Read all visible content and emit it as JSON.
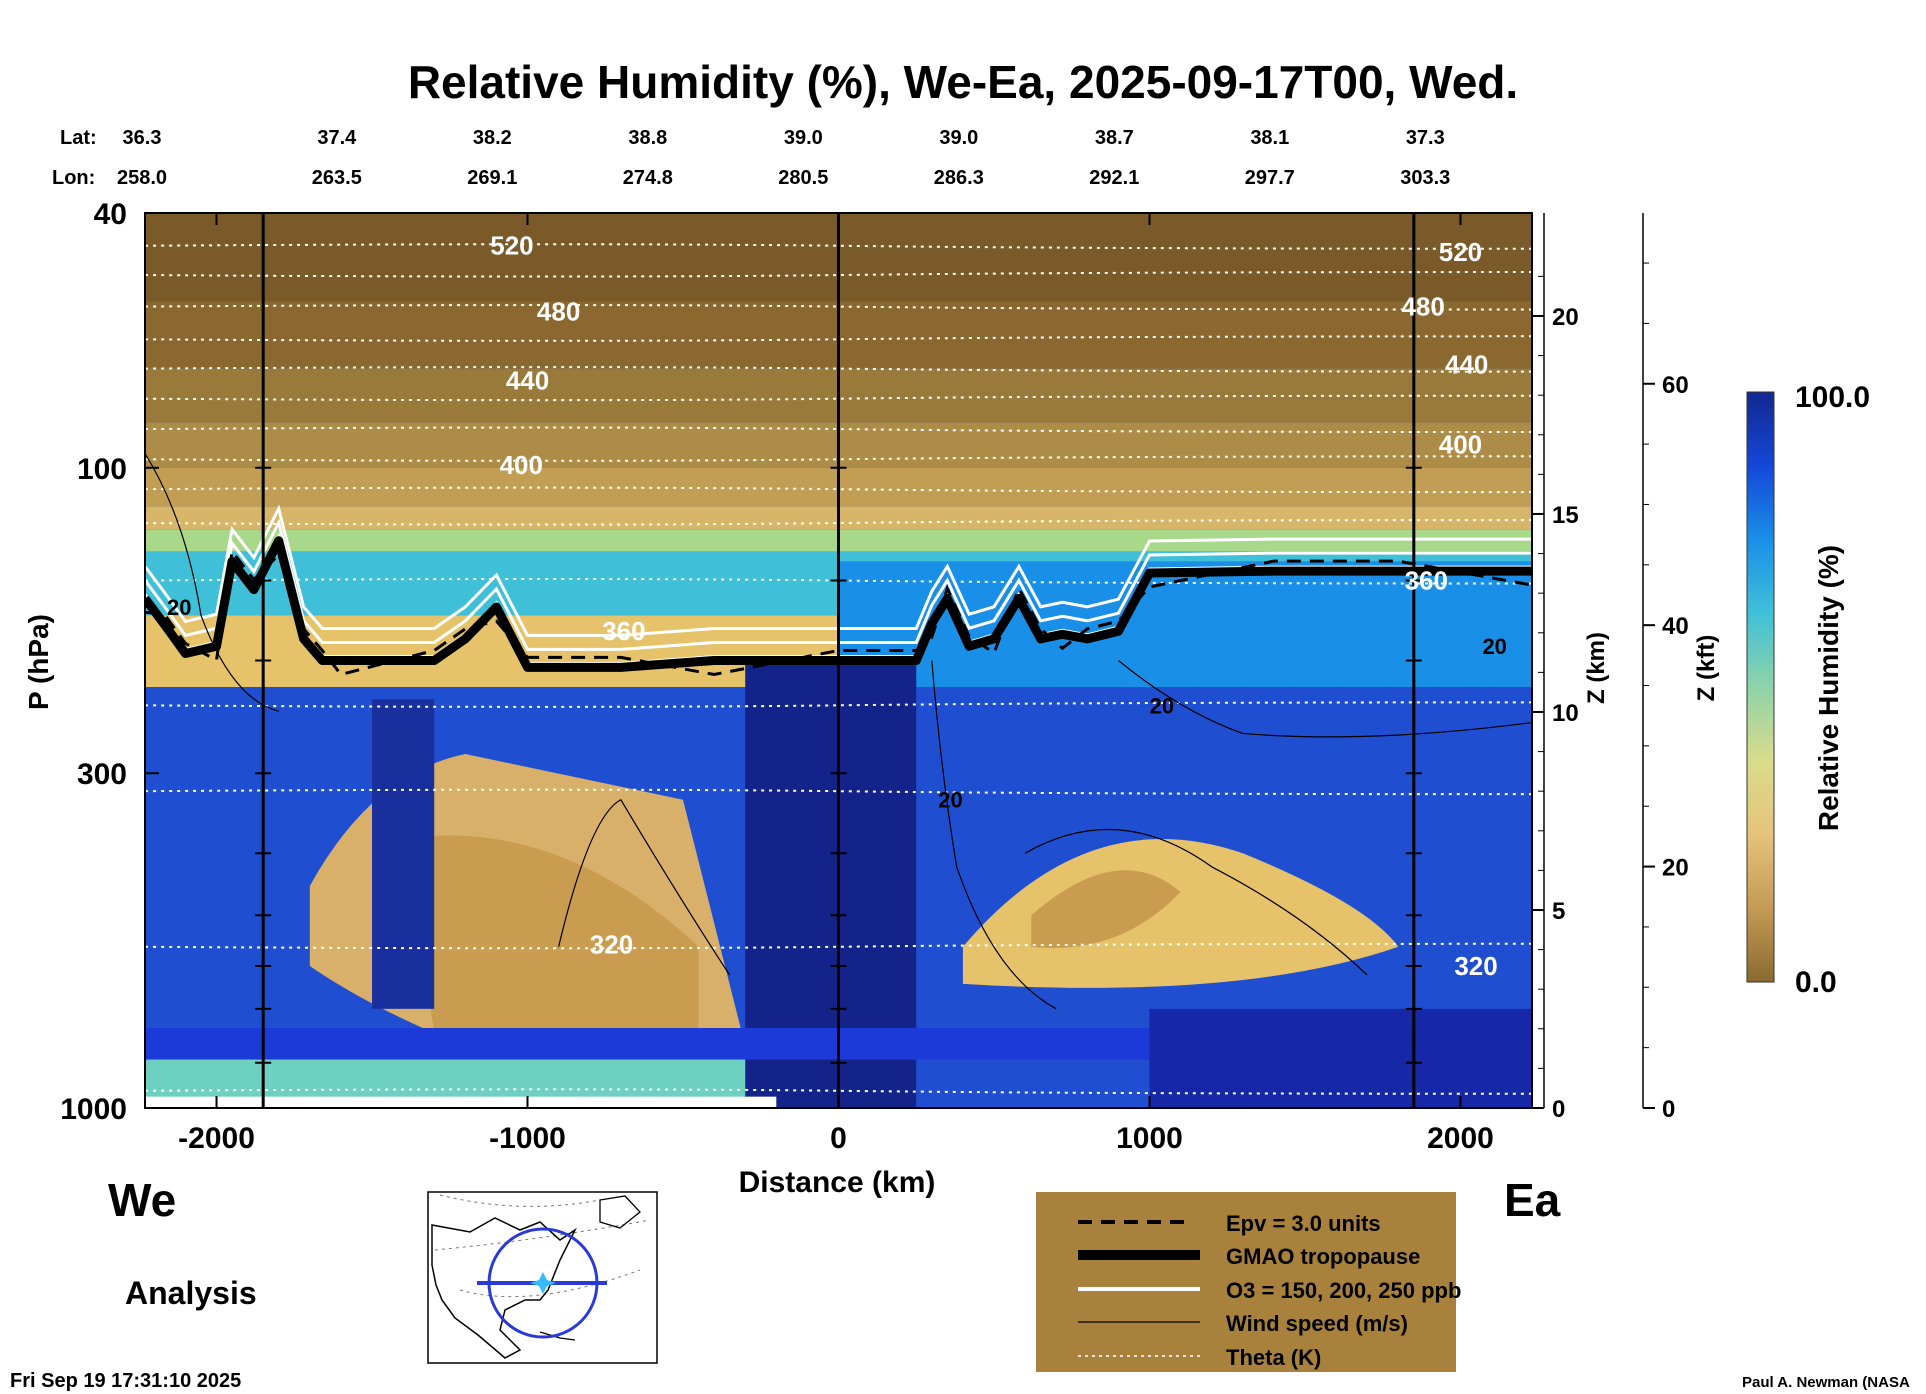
{
  "chart_data": {
    "type": "heatmap",
    "title": "Relative Humidity (%), We-Ea, 2025-09-17T00, Wed.",
    "xlabel": "Distance (km)",
    "ylabel": "P (hPa)",
    "y2label": "Z (km)",
    "y3label": "Z (kft)",
    "xlim": [
      -2230,
      2230
    ],
    "ylim": [
      1000,
      40
    ],
    "y_scale": "log",
    "x_ticks": [
      "-2000",
      "-1000",
      "0",
      "1000",
      "2000"
    ],
    "x_tick_values": [
      -2000,
      -1000,
      0,
      1000,
      2000
    ],
    "y_ticks": [
      "40",
      "100",
      "300",
      "1000"
    ],
    "y_tick_values": [
      40,
      100,
      300,
      1000
    ],
    "z_km_ticks": [
      "0",
      "5",
      "10",
      "15",
      "20"
    ],
    "z_km_values": [
      0,
      5,
      10,
      15,
      20
    ],
    "z_kft_ticks": [
      "0",
      "20",
      "40",
      "60"
    ],
    "z_kft_values": [
      0,
      20,
      40,
      60
    ],
    "left_label": "We",
    "right_label": "Ea",
    "lat_label": "Lat:",
    "lon_label": "Lon:",
    "lat": [
      "36.3",
      "37.4",
      "38.2",
      "38.8",
      "39.0",
      "39.0",
      "38.7",
      "38.1",
      "37.3"
    ],
    "lon": [
      "258.0",
      "263.5",
      "269.1",
      "274.8",
      "280.5",
      "286.3",
      "292.1",
      "297.7",
      "303.3"
    ],
    "station_distance": [
      -2230,
      -1790,
      -1290,
      -790,
      -290,
      210,
      710,
      1210,
      1710
    ],
    "vertical_lines": [
      -1850,
      0,
      1850
    ],
    "colorbar": {
      "label": "Relative Humidity (%)",
      "min": "0.0",
      "max": "100.0",
      "colors": [
        "#8a6a30",
        "#c49a55",
        "#e6c37a",
        "#d9dc8a",
        "#8fd3a8",
        "#3fc0d8",
        "#1a8fe8",
        "#1447d8",
        "#13288f"
      ]
    },
    "theta_contours": [
      {
        "label": "520",
        "x": -1050,
        "p": 45
      },
      {
        "label": "480",
        "x": -900,
        "p": 57
      },
      {
        "label": "440",
        "x": -1000,
        "p": 73
      },
      {
        "label": "400",
        "x": -1020,
        "p": 99
      },
      {
        "label": "360",
        "x": -690,
        "p": 180
      },
      {
        "label": "320",
        "x": -730,
        "p": 555
      },
      {
        "label": "520",
        "x": 2000,
        "p": 46
      },
      {
        "label": "480",
        "x": 1880,
        "p": 56
      },
      {
        "label": "440",
        "x": 2020,
        "p": 69
      },
      {
        "label": "400",
        "x": 2000,
        "p": 92
      },
      {
        "label": "360",
        "x": 1890,
        "p": 150
      },
      {
        "label": "320",
        "x": 2050,
        "p": 600
      }
    ],
    "wind_labels": [
      {
        "label": "20",
        "x": -2120,
        "p": 165
      },
      {
        "label": "20",
        "x": 1040,
        "p": 235
      },
      {
        "label": "20",
        "x": 360,
        "p": 330
      },
      {
        "label": "20",
        "x": 2110,
        "p": 190
      }
    ],
    "tropopause": {
      "x": [
        -2230,
        -2170,
        -2100,
        -2000,
        -1950,
        -1880,
        -1800,
        -1720,
        -1660,
        -1600,
        -1300,
        -1200,
        -1100,
        -1000,
        -700,
        -400,
        0,
        250,
        300,
        350,
        420,
        500,
        580,
        650,
        720,
        800,
        900,
        1000,
        1400,
        1800,
        2230
      ],
      "p": [
        160,
        175,
        195,
        190,
        140,
        155,
        130,
        185,
        200,
        200,
        200,
        185,
        165,
        205,
        205,
        200,
        200,
        200,
        175,
        160,
        190,
        185,
        160,
        185,
        182,
        185,
        180,
        146,
        145,
        145,
        145
      ]
    },
    "legend": {
      "items": [
        "Epv = 3.0 units",
        "GMAO tropopause",
        "O3 = 150, 200, 250 ppb",
        "Wind speed (m/s)",
        "Theta (K)"
      ]
    },
    "product_label": "Analysis",
    "timestamp": "Fri Sep 19 17:31:10 2025",
    "credit": "Paul A. Newman (NASA"
  }
}
